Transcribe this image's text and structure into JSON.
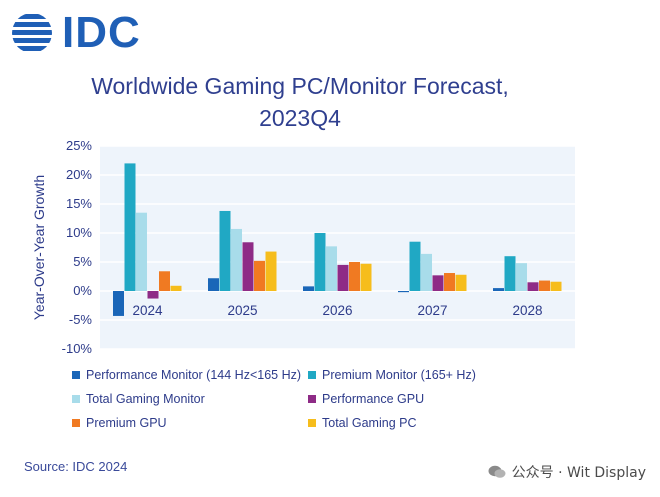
{
  "logo": {
    "text": "IDC"
  },
  "chart_data": {
    "type": "bar",
    "title": "Worldwide Gaming PC/Monitor Forecast,",
    "subtitle": "2023Q4",
    "ylabel": "Year-Over-Year Growth",
    "xlabel": "",
    "ylim": [
      -10,
      25
    ],
    "yticks": [
      -10,
      -5,
      0,
      5,
      10,
      15,
      20,
      25
    ],
    "ytick_labels": [
      "-10%",
      "-5%",
      "0%",
      "5%",
      "10%",
      "15%",
      "20%",
      "25%"
    ],
    "grid": true,
    "categories": [
      "2024",
      "2025",
      "2026",
      "2027",
      "2028"
    ],
    "series": [
      {
        "name": "Performance Monitor (144 Hz<165 Hz)",
        "color": "#1a66b8",
        "values": [
          -4.3,
          2.2,
          0.8,
          -0.2,
          0.5
        ]
      },
      {
        "name": "Premium Monitor (165+ Hz)",
        "color": "#20a8c4",
        "values": [
          22.0,
          13.8,
          10.0,
          8.5,
          6.0
        ]
      },
      {
        "name": "Total Gaming Monitor",
        "color": "#a8dcea",
        "values": [
          13.5,
          10.7,
          7.7,
          6.4,
          4.8
        ]
      },
      {
        "name": "Performance GPU",
        "color": "#8e2b86",
        "values": [
          -1.3,
          8.4,
          4.5,
          2.7,
          1.5
        ]
      },
      {
        "name": "Premium GPU",
        "color": "#f07a22",
        "values": [
          3.4,
          5.2,
          5.0,
          3.1,
          1.8
        ]
      },
      {
        "name": "Total Gaming PC",
        "color": "#f6bd1c",
        "values": [
          0.9,
          6.8,
          4.7,
          2.8,
          1.6
        ]
      }
    ],
    "legend_position": "bottom"
  },
  "source": "Source: IDC 2024",
  "watermark": "公众号 · Wit Display"
}
